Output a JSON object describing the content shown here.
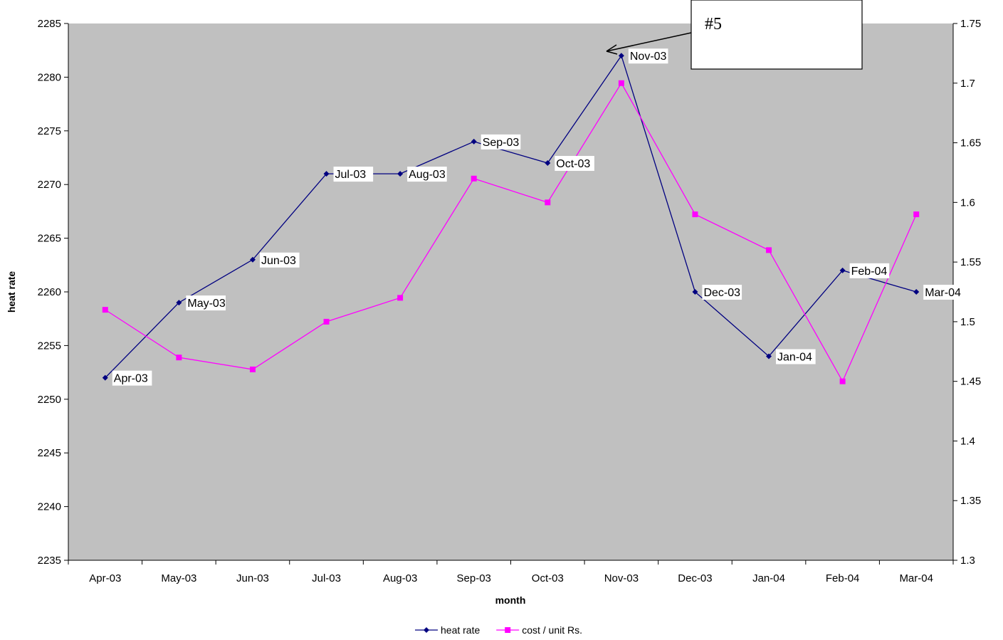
{
  "chart_data": {
    "type": "line",
    "title": "",
    "xlabel": "month",
    "ylabel": "heat rate",
    "y2label": "",
    "categories": [
      "Apr-03",
      "May-03",
      "Jun-03",
      "Jul-03",
      "Aug-03",
      "Sep-03",
      "Oct-03",
      "Nov-03",
      "Dec-03",
      "Jan-04",
      "Feb-04",
      "Mar-04"
    ],
    "ylim": [
      2235,
      2285
    ],
    "y_ticks": [
      2235,
      2240,
      2245,
      2250,
      2255,
      2260,
      2265,
      2270,
      2275,
      2280,
      2285
    ],
    "y2lim": [
      1.3,
      1.75
    ],
    "y2_ticks": [
      "1.3",
      "1.35",
      "1.4",
      "1.45",
      "1.5",
      "1.55",
      "1.6",
      "1.65",
      "1.7",
      "1.75"
    ],
    "series": [
      {
        "name": "heat rate",
        "axis": "left",
        "color": "#000080",
        "marker": "diamond",
        "data_labels": true,
        "values": [
          2252,
          2259,
          2263,
          2271,
          2271,
          2274,
          2272,
          2282,
          2260,
          2254,
          2262,
          2260
        ]
      },
      {
        "name": "cost / unit Rs.",
        "axis": "right",
        "color": "#ff00ff",
        "marker": "square",
        "data_labels": false,
        "values": [
          1.51,
          1.47,
          1.46,
          1.5,
          1.52,
          1.62,
          1.6,
          1.7,
          1.59,
          1.56,
          1.45,
          1.59
        ]
      }
    ],
    "plot_background": "#c0c0c0",
    "grid": false,
    "legend": {
      "position": "bottom"
    },
    "annotations": [
      {
        "text": "#5",
        "points_to": "Nov-03"
      }
    ]
  }
}
